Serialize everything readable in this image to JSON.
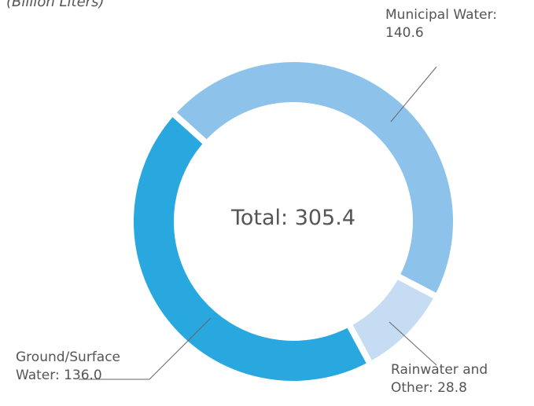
{
  "chart_data": {
    "type": "donut",
    "subtitle": "(Billion Liters)",
    "values": [
      140.6,
      28.8,
      136.0
    ],
    "value_labels": [
      "Municipal Water: 140.6",
      "Rainwater and Other: 28.8",
      "Ground/Surface Water: 136.0"
    ],
    "colors": [
      "#8dc3ea",
      "#c5dcf3",
      "#29a8e0"
    ],
    "center_label": "Total: 305.4"
  }
}
